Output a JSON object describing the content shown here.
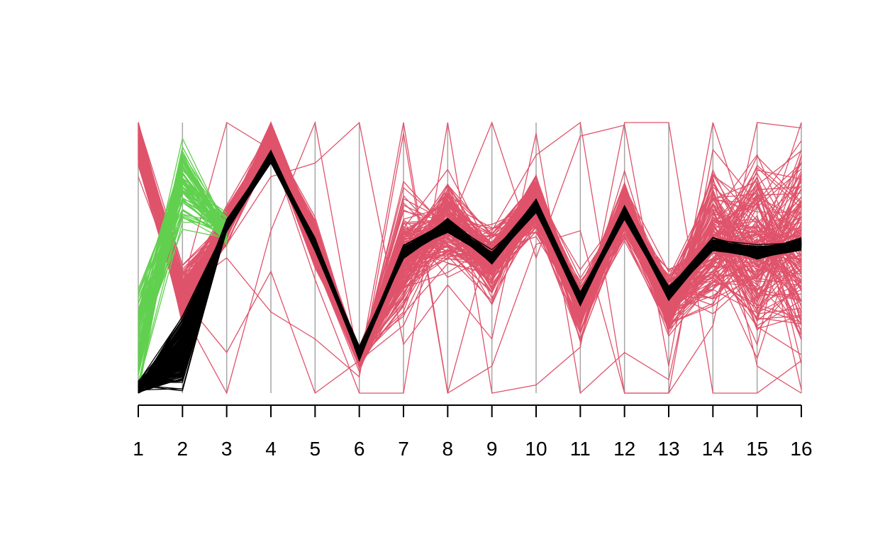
{
  "chart_data": {
    "type": "parallel-coordinates",
    "title": "",
    "xlabel": "",
    "ylabel": "",
    "x_ticks": [
      "1",
      "2",
      "3",
      "4",
      "5",
      "6",
      "7",
      "8",
      "9",
      "10",
      "11",
      "12",
      "13",
      "14",
      "15",
      "16"
    ],
    "ylim": [
      0,
      1
    ],
    "grid": false,
    "legend": "none",
    "axis_color": "#a6a6a6",
    "series": [
      {
        "color": "#df536b",
        "line_count": 150,
        "spread": [
          0.06,
          0.05,
          0.03,
          0.03,
          0.04,
          0.02,
          0.1,
          0.08,
          0.06,
          0.05,
          0.05,
          0.05,
          0.06,
          0.12,
          0.16,
          0.2
        ],
        "mean_profile": [
          0.95,
          0.35,
          0.62,
          0.93,
          0.55,
          0.13,
          0.5,
          0.63,
          0.49,
          0.7,
          0.32,
          0.68,
          0.33,
          0.55,
          0.53,
          0.54
        ],
        "outlier_profiles": [
          [
            0.98,
            0.4,
            1.0,
            0.9,
            0.42,
            0.0,
            0.0,
            1.0,
            0.0,
            0.03,
            0.17,
            1.0,
            1.0,
            0.0,
            0.0,
            0.12
          ],
          [
            0.85,
            0.3,
            0.0,
            0.6,
            1.0,
            0.1,
            1.0,
            0.0,
            0.6,
            0.88,
            1.0,
            0.0,
            0.0,
            0.25,
            1.0,
            0.98
          ],
          [
            0.9,
            0.35,
            0.15,
            0.45,
            0.0,
            0.12,
            0.25,
            0.6,
            1.0,
            0.5,
            0.95,
            0.99,
            0.1,
            1.0,
            0.5,
            1.0
          ],
          [
            0.92,
            0.32,
            0.55,
            0.8,
            0.85,
            1.0,
            0.18,
            0.4,
            0.2,
            0.96,
            0.0,
            0.15,
            0.05,
            0.8,
            0.1,
            0.0
          ],
          [
            0.96,
            0.38,
            0.5,
            0.3,
            0.2,
            0.06,
            0.96,
            0.0,
            0.1,
            0.55,
            0.6,
            0.0,
            0.0,
            0.9,
            0.7,
            0.85
          ]
        ]
      },
      {
        "color": "#61d04f",
        "line_count": 70,
        "spread": [
          0.1,
          0.08,
          0.03
        ],
        "mean_profile": [
          0.2,
          0.78,
          0.6
        ]
      },
      {
        "color": "#000000",
        "line_count": 200,
        "spread": [
          0.01,
          0.06,
          0.01,
          0.01,
          0.01,
          0.01,
          0.01,
          0.01,
          0.01,
          0.01,
          0.01,
          0.01,
          0.01,
          0.01,
          0.01,
          0.01
        ],
        "mean_profile": [
          0.02,
          0.15,
          0.62,
          0.87,
          0.55,
          0.15,
          0.52,
          0.62,
          0.5,
          0.69,
          0.35,
          0.67,
          0.37,
          0.55,
          0.52,
          0.55
        ]
      }
    ]
  }
}
